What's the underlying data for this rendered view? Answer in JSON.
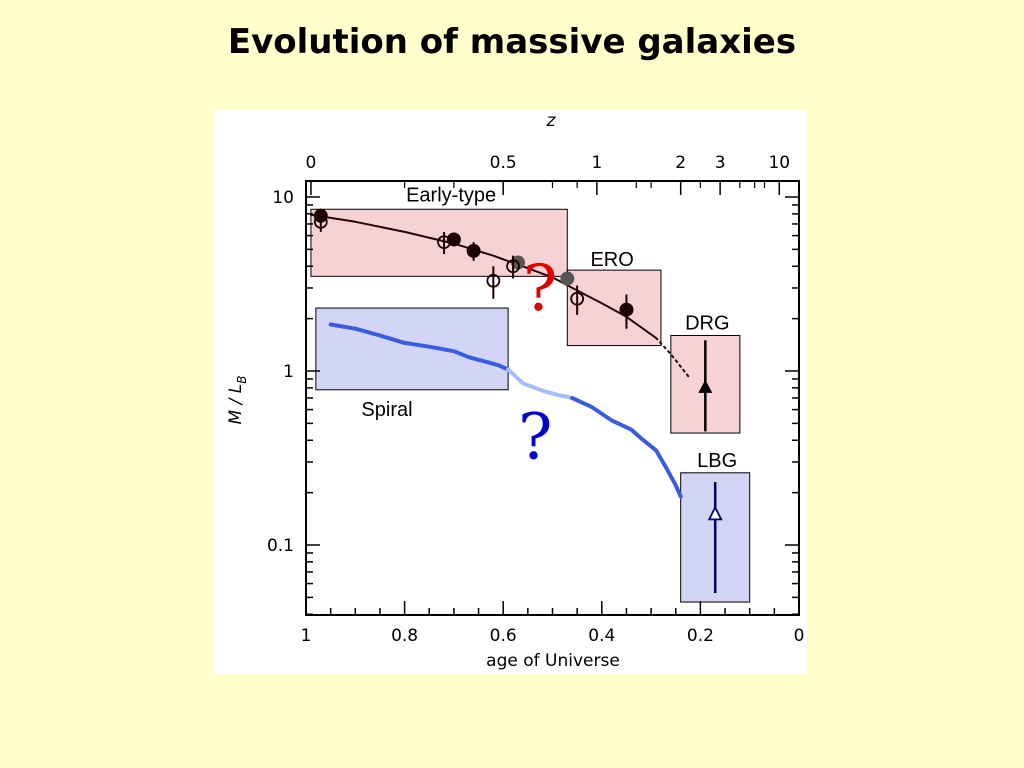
{
  "slide": {
    "title": "Evolution of massive galaxies"
  },
  "chart_data": {
    "type": "scatter",
    "title": "",
    "xlabel": "age of Universe",
    "ylabel": "M / L_B",
    "ylabel_main": "M / L",
    "ylabel_sub": "B",
    "top_axis_label": "z",
    "xlim": [
      1,
      0
    ],
    "ylim": [
      0.04,
      15
    ],
    "y_scale": "log",
    "x_ticks": [
      1,
      0.8,
      0.6,
      0.4,
      0.2,
      0
    ],
    "x_tick_labels": [
      "1",
      "0.8",
      "0.6",
      "0.4",
      "0.2",
      "0"
    ],
    "y_ticks": [
      0.1,
      1,
      10
    ],
    "y_tick_labels": [
      "0.1",
      "1",
      "10"
    ],
    "top_ticks": [
      {
        "label": "0",
        "age": 0.99
      },
      {
        "label": "0.5",
        "age": 0.6
      },
      {
        "label": "1",
        "age": 0.41
      },
      {
        "label": "2",
        "age": 0.24
      },
      {
        "label": "3",
        "age": 0.16
      },
      {
        "label": "10",
        "age": 0.04
      }
    ],
    "regions": [
      {
        "name": "Early-type",
        "x": [
          0.99,
          0.47
        ],
        "y": [
          3.5,
          8.5
        ],
        "fill": "#f7d2d5"
      },
      {
        "name": "ERO",
        "x": [
          0.47,
          0.28
        ],
        "y": [
          1.4,
          3.8
        ],
        "fill": "#f7d2d5"
      },
      {
        "name": "DRG",
        "x": [
          0.26,
          0.12
        ],
        "y": [
          0.44,
          1.6
        ],
        "fill": "#f7d2d5"
      },
      {
        "name": "Spiral",
        "x": [
          0.98,
          0.59
        ],
        "y": [
          0.78,
          2.3
        ],
        "fill": "#d2d5f5"
      },
      {
        "name": "LBG",
        "x": [
          0.24,
          0.1
        ],
        "y": [
          0.047,
          0.26
        ],
        "fill": "#d2d5f5"
      }
    ],
    "series": [
      {
        "marker": "filled-circle",
        "color": "#1a0000",
        "points": [
          {
            "x": 0.97,
            "y": 7.8,
            "yerr": 0.4
          },
          {
            "x": 0.7,
            "y": 5.7,
            "yerr": 0.5
          },
          {
            "x": 0.66,
            "y": 4.9,
            "yerr": 0.6
          },
          {
            "x": 0.35,
            "y": 2.25,
            "yerr": 0.5
          }
        ]
      },
      {
        "marker": "grey-circle",
        "color": "#555555",
        "points": [
          {
            "x": 0.57,
            "y": 4.2,
            "yerr": 0
          },
          {
            "x": 0.47,
            "y": 3.4,
            "yerr": 0
          }
        ]
      },
      {
        "marker": "open-circle",
        "color": "#1a0000",
        "points": [
          {
            "x": 0.97,
            "y": 7.2,
            "yerr": 0.9
          },
          {
            "x": 0.72,
            "y": 5.5,
            "yerr": 0.8
          },
          {
            "x": 0.62,
            "y": 3.3,
            "yerr": 0.7
          },
          {
            "x": 0.58,
            "y": 4.0,
            "yerr": 0.6
          },
          {
            "x": 0.45,
            "y": 2.6,
            "yerr": 0.5
          }
        ]
      },
      {
        "marker": "filled-triangle",
        "color": "#000000",
        "points": [
          {
            "x": 0.19,
            "y": 0.8,
            "ylow": 0.45,
            "yhigh": 1.5
          }
        ]
      },
      {
        "marker": "open-triangle",
        "color": "#000066",
        "points": [
          {
            "x": 0.17,
            "y": 0.15,
            "ylow": 0.053,
            "yhigh": 0.23
          }
        ]
      }
    ],
    "early_type_track": [
      [
        0.99,
        7.9
      ],
      [
        0.9,
        7.2
      ],
      [
        0.8,
        6.3
      ],
      [
        0.7,
        5.4
      ],
      [
        0.62,
        4.6
      ],
      [
        0.55,
        3.9
      ],
      [
        0.5,
        3.45
      ],
      [
        0.45,
        2.9
      ],
      [
        0.4,
        2.45
      ],
      [
        0.35,
        2.05
      ],
      [
        0.29,
        1.55
      ]
    ],
    "early_type_extrapolation": [
      [
        0.29,
        1.55
      ],
      [
        0.26,
        1.25
      ],
      [
        0.22,
        0.9
      ]
    ],
    "spiral_track": [
      [
        0.95,
        1.85
      ],
      [
        0.9,
        1.75
      ],
      [
        0.85,
        1.6
      ],
      [
        0.8,
        1.45
      ],
      [
        0.75,
        1.38
      ],
      [
        0.7,
        1.3
      ],
      [
        0.67,
        1.2
      ],
      [
        0.63,
        1.12
      ],
      [
        0.61,
        1.08
      ],
      [
        0.59,
        1.02
      ]
    ],
    "spiral_gap_track": [
      [
        0.59,
        1.02
      ],
      [
        0.56,
        0.85
      ],
      [
        0.52,
        0.77
      ],
      [
        0.49,
        0.73
      ],
      [
        0.46,
        0.7
      ]
    ],
    "spiral_late_track": [
      [
        0.46,
        0.7
      ],
      [
        0.42,
        0.62
      ],
      [
        0.38,
        0.52
      ],
      [
        0.34,
        0.46
      ],
      [
        0.32,
        0.41
      ],
      [
        0.29,
        0.35
      ],
      [
        0.27,
        0.28
      ],
      [
        0.25,
        0.22
      ],
      [
        0.24,
        0.19
      ]
    ],
    "annotations": [
      {
        "text": "?",
        "x": 0.525,
        "y": 3.0,
        "color": "#dd0000"
      },
      {
        "text": "?",
        "x": 0.535,
        "y": 0.42,
        "color": "#0000cc"
      }
    ],
    "colors": {
      "early_type_line": "#2a0505",
      "spiral_line": "#3a5de0",
      "spiral_gap_line": "#a8bdf5",
      "region_border": "#000000"
    }
  }
}
